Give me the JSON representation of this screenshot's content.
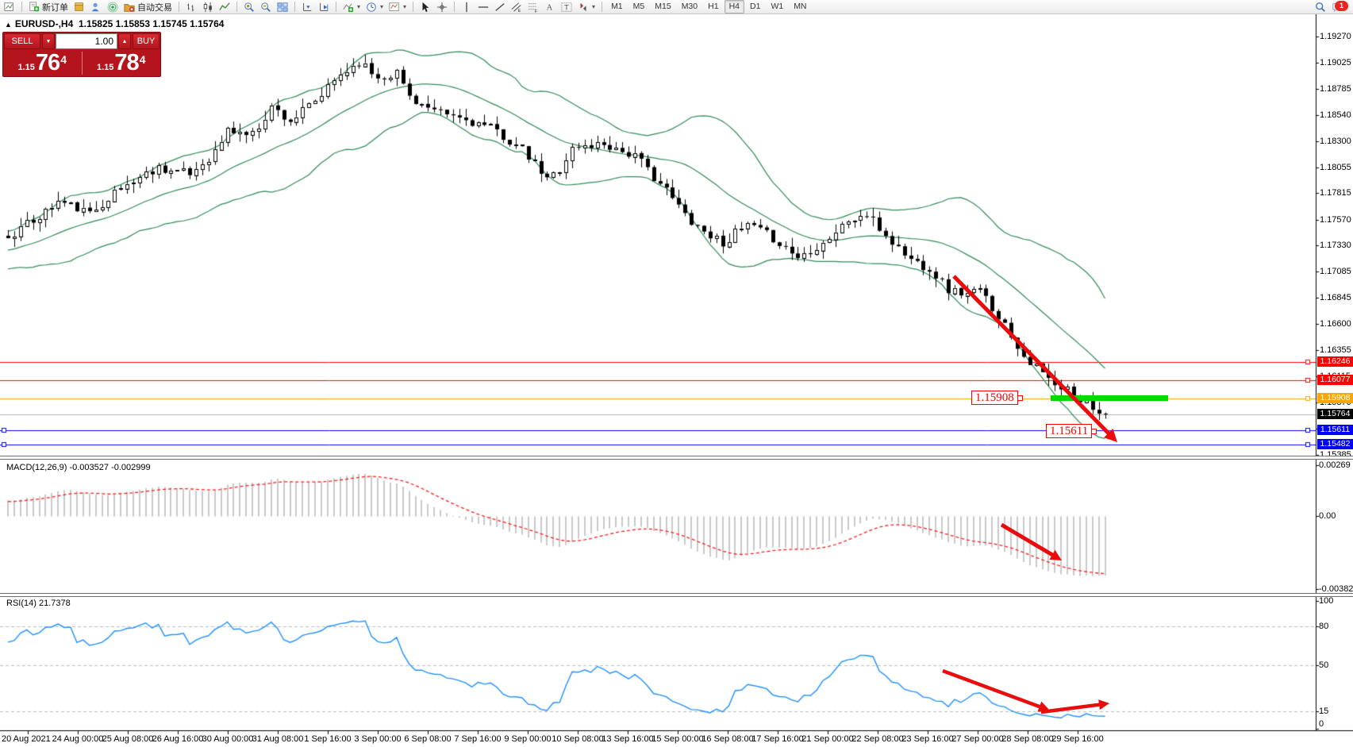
{
  "window": {
    "notification_count": "1"
  },
  "toolbar": {
    "new_order_label": "新订单",
    "autotrading_label": "自动交易",
    "timeframes": [
      "M1",
      "M5",
      "M15",
      "M30",
      "H1",
      "H4",
      "D1",
      "W1",
      "MN"
    ],
    "active_timeframe": "H4"
  },
  "quote_header": {
    "collapse_icon": "▲",
    "symbol": "EURUSD-,H4",
    "ohlc": "1.15825 1.15853 1.15745 1.15764"
  },
  "trade_panel": {
    "sell_label": "SELL",
    "buy_label": "BUY",
    "volume": "1.00",
    "sell_small": "1.15",
    "sell_big": "76",
    "sell_sup": "4",
    "buy_small": "1.15",
    "buy_big": "78",
    "buy_sup": "4"
  },
  "price_axis": {
    "ticks": [
      "1.19270",
      "1.19025",
      "1.18785",
      "1.18540",
      "1.18300",
      "1.18055",
      "1.17815",
      "1.17570",
      "1.17330",
      "1.17085",
      "1.16845",
      "1.16600",
      "1.16355",
      "1.16115",
      "1.15870",
      "1.15625",
      "1.15385"
    ]
  },
  "time_axis": {
    "labels": [
      "20 Aug 2021",
      "24 Aug 00:00",
      "25 Aug 08:00",
      "26 Aug 16:00",
      "30 Aug 00:00",
      "31 Aug 08:00",
      "1 Sep 16:00",
      "3 Sep 00:00",
      "6 Sep 08:00",
      "7 Sep 16:00",
      "9 Sep 00:00",
      "10 Sep 08:00",
      "13 Sep 16:00",
      "15 Sep 00:00",
      "16 Sep 08:00",
      "17 Sep 16:00",
      "21 Sep 00:00",
      "22 Sep 08:00",
      "23 Sep 16:00",
      "27 Sep 00:00",
      "28 Sep 08:00",
      "29 Sep 16:00"
    ]
  },
  "levels": [
    {
      "price": "1.16246",
      "color": "#ff0000"
    },
    {
      "price": "1.16077",
      "color": "#ff0000"
    },
    {
      "price": "1.15908",
      "color": "#ffa500"
    },
    {
      "price": "1.15611",
      "color": "#0000ff"
    },
    {
      "price": "1.15482",
      "color": "#0000ff"
    }
  ],
  "current_price": {
    "value": "1.15764",
    "color": "#000000"
  },
  "annotations": [
    {
      "text": "1.15908"
    },
    {
      "text": "1.15611"
    }
  ],
  "macd_pane": {
    "title": "MACD(12,26,9) -0.003527 -0.002999",
    "axis": [
      "0.00269",
      "0.00",
      "-0.003823"
    ]
  },
  "rsi_pane": {
    "title": "RSI(14) 21.7378",
    "axis": [
      "100",
      "80",
      "50",
      "15",
      "0"
    ],
    "dashed_levels": [
      80,
      50,
      15
    ]
  },
  "colors": {
    "bollinger": "#2e8b57",
    "rsi_line": "#1e90ff",
    "macd_histogram": "#c9c9c9",
    "macd_signal": "#ff1a1a",
    "arrow": "#ea0c0c",
    "highlight_bar": "#00da00",
    "current_price_line": "#b3b3b3",
    "panel_red": "#b4151d"
  },
  "chart_data": {
    "type": "candlestick",
    "symbol": "EURUSD-",
    "timeframe": "H4",
    "last_ohlc": {
      "open": "1.15825",
      "high": "1.15853",
      "low": "1.15745",
      "close": "1.15764"
    },
    "candle_count": 176,
    "close_waypoints": [
      [
        0,
        1.1742
      ],
      [
        4,
        1.1756
      ],
      [
        8,
        1.1774
      ],
      [
        11,
        1.1768
      ],
      [
        13,
        1.1762
      ],
      [
        16,
        1.1778
      ],
      [
        19,
        1.179
      ],
      [
        24,
        1.1806
      ],
      [
        29,
        1.1799
      ],
      [
        33,
        1.182
      ],
      [
        35,
        1.184
      ],
      [
        39,
        1.1836
      ],
      [
        42,
        1.1862
      ],
      [
        45,
        1.1849
      ],
      [
        49,
        1.1866
      ],
      [
        53,
        1.1892
      ],
      [
        56,
        1.1904
      ],
      [
        59,
        1.1889
      ],
      [
        62,
        1.1894
      ],
      [
        64,
        1.1872
      ],
      [
        68,
        1.1856
      ],
      [
        71,
        1.1853
      ],
      [
        75,
        1.1846
      ],
      [
        78,
        1.1839
      ],
      [
        82,
        1.1821
      ],
      [
        86,
        1.1794
      ],
      [
        88,
        1.1805
      ],
      [
        90,
        1.1823
      ],
      [
        95,
        1.1828
      ],
      [
        100,
        1.1816
      ],
      [
        104,
        1.1791
      ],
      [
        108,
        1.1762
      ],
      [
        111,
        1.1746
      ],
      [
        114,
        1.1736
      ],
      [
        118,
        1.1752
      ],
      [
        122,
        1.174
      ],
      [
        126,
        1.1722
      ],
      [
        130,
        1.1736
      ],
      [
        134,
        1.1756
      ],
      [
        137,
        1.1761
      ],
      [
        141,
        1.1736
      ],
      [
        144,
        1.172
      ],
      [
        147,
        1.1712
      ],
      [
        150,
        1.1692
      ],
      [
        153,
        1.1688
      ],
      [
        155,
        1.1691
      ],
      [
        158,
        1.1668
      ],
      [
        160,
        1.165
      ],
      [
        162,
        1.1631
      ],
      [
        164,
        1.162
      ],
      [
        166,
        1.1608
      ],
      [
        168,
        1.1597
      ],
      [
        169,
        1.16
      ],
      [
        170,
        1.1593
      ],
      [
        171,
        1.1585
      ],
      [
        172,
        1.1592
      ],
      [
        173,
        1.1583
      ],
      [
        174,
        1.158
      ],
      [
        175,
        1.15764
      ]
    ],
    "bollinger": {
      "period": 20,
      "deviation": 2
    },
    "macd": {
      "fast": 12,
      "slow": 26,
      "signal": 9,
      "value": -0.003527,
      "signal_value": -0.002999,
      "scale_max": 0.00269,
      "scale_min": -0.003823
    },
    "rsi": {
      "period": 14,
      "value": 21.7378
    }
  }
}
